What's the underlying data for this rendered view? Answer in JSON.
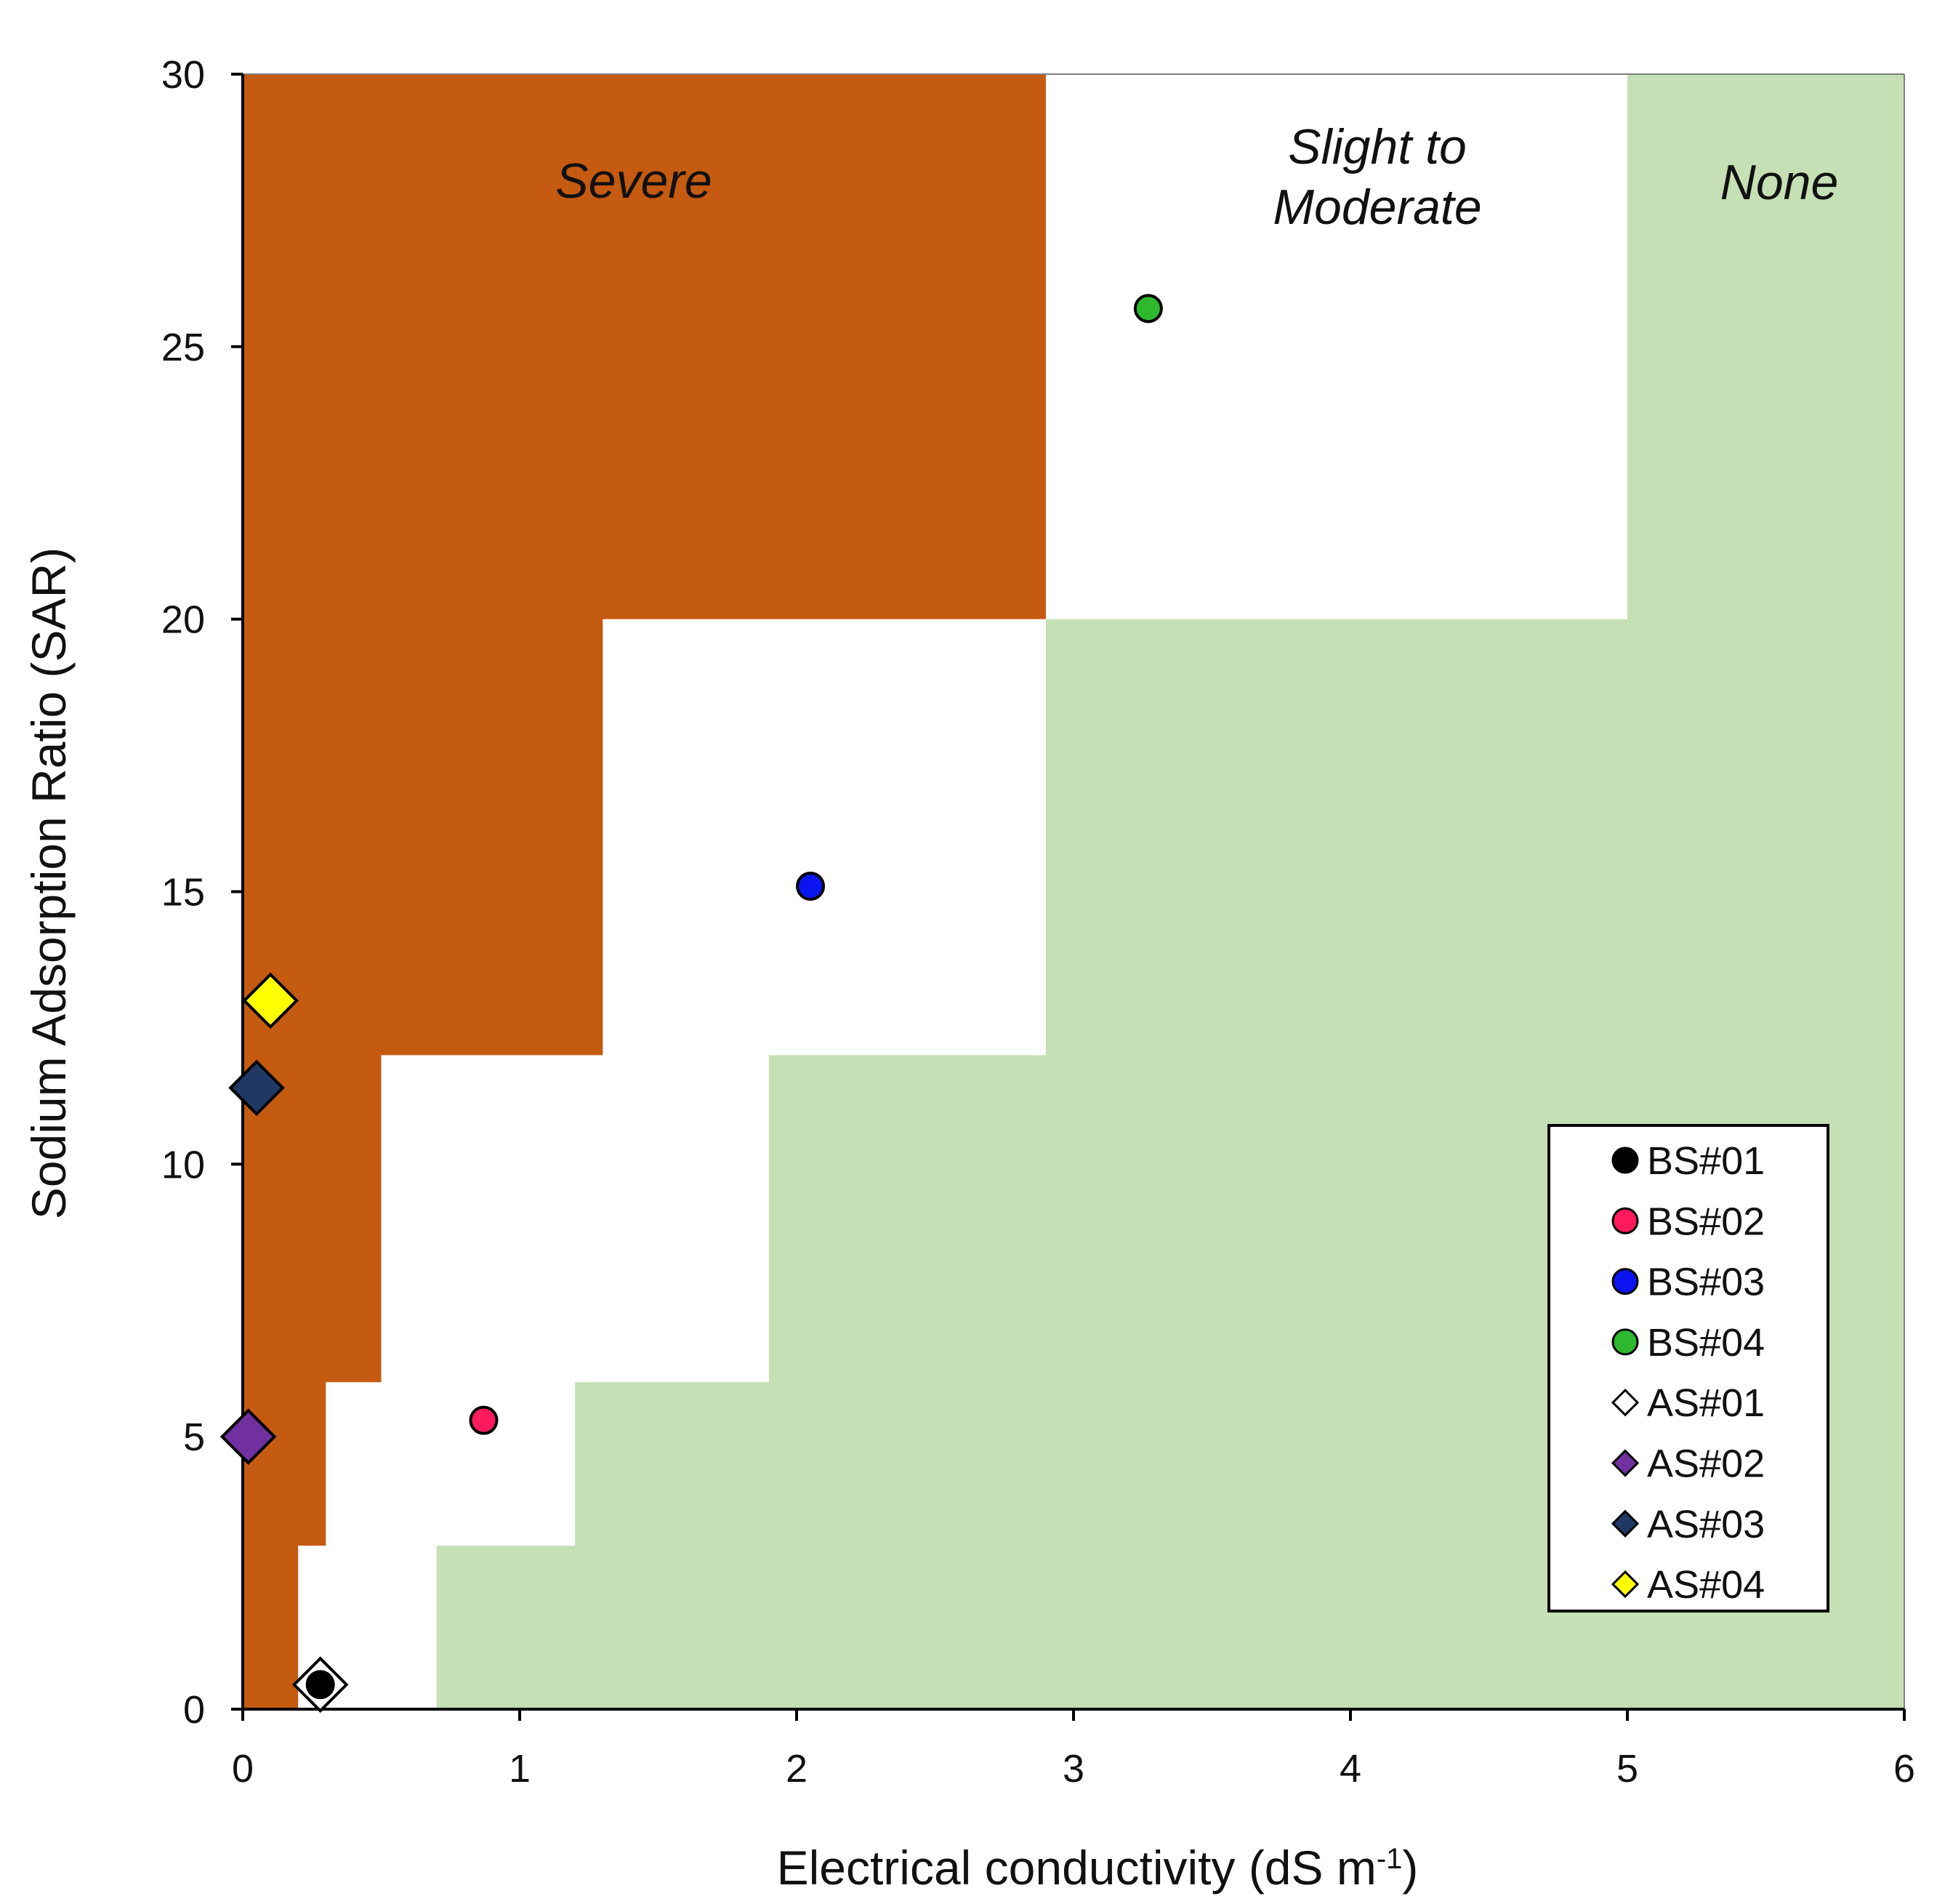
{
  "chart_data": {
    "type": "scatter",
    "title": "",
    "xlabel": "Electrical conductivity (dS m",
    "xlabel_sup": "-1",
    "xlabel_tail": ")",
    "ylabel": "Sodium Adsorption Ratio (SAR)",
    "xlim": [
      0,
      6
    ],
    "ylim": [
      0,
      30
    ],
    "x_ticks": [
      0,
      1,
      2,
      3,
      4,
      5,
      6
    ],
    "y_ticks": [
      0,
      5,
      10,
      15,
      20,
      25,
      30
    ],
    "x_tick_labels": [
      "0",
      "1",
      "2",
      "3",
      "4",
      "5",
      "6"
    ],
    "y_tick_labels": [
      "0",
      "5",
      "10",
      "15",
      "20",
      "25",
      "30"
    ],
    "zones": [
      {
        "name": "Severe",
        "label": "Severe",
        "color": "#c55a11",
        "polygon": [
          [
            0,
            0
          ],
          [
            0.2,
            0
          ],
          [
            0.2,
            3
          ],
          [
            0.3,
            3
          ],
          [
            0.3,
            6
          ],
          [
            0.5,
            6
          ],
          [
            0.5,
            12
          ],
          [
            1.3,
            12
          ],
          [
            1.3,
            20
          ],
          [
            2.9,
            20
          ],
          [
            2.9,
            30
          ],
          [
            0,
            30
          ]
        ]
      },
      {
        "name": "Slight to Moderate",
        "label_lines": [
          "Slight to",
          "Moderate"
        ],
        "color": "#ffffff"
      },
      {
        "name": "None",
        "label": "None",
        "color": "#c5e0b4",
        "polygon": [
          [
            0.7,
            0
          ],
          [
            6,
            0
          ],
          [
            6,
            30
          ],
          [
            5,
            30
          ],
          [
            5,
            20
          ],
          [
            2.9,
            20
          ],
          [
            2.9,
            12
          ],
          [
            1.9,
            12
          ],
          [
            1.9,
            6
          ],
          [
            1.2,
            6
          ],
          [
            1.2,
            3
          ],
          [
            0.7,
            3
          ]
        ]
      }
    ],
    "series": [
      {
        "name": "BS#01",
        "marker": "circle",
        "color": "#000000",
        "x": 0.28,
        "y": 0.45
      },
      {
        "name": "BS#02",
        "marker": "circle",
        "color": "#ff1a5e",
        "x": 0.87,
        "y": 5.3
      },
      {
        "name": "BS#03",
        "marker": "circle",
        "color": "#0a14f0",
        "x": 2.05,
        "y": 15.1
      },
      {
        "name": "BS#04",
        "marker": "circle",
        "color": "#2eb82e",
        "x": 3.27,
        "y": 25.7
      },
      {
        "name": "AS#01",
        "marker": "diamond",
        "color": "#ffffff",
        "x": 0.28,
        "y": 0.45
      },
      {
        "name": "AS#02",
        "marker": "diamond",
        "color": "#7030a0",
        "x": 0.02,
        "y": 5.0
      },
      {
        "name": "AS#03",
        "marker": "diamond",
        "color": "#1f3864",
        "x": 0.05,
        "y": 11.4
      },
      {
        "name": "AS#04",
        "marker": "diamond",
        "color": "#ffff00",
        "x": 0.1,
        "y": 13.0
      }
    ],
    "legend": {
      "position": "bottom-right",
      "entries": [
        "BS#01",
        "BS#02",
        "BS#03",
        "BS#04",
        "AS#01",
        "AS#02",
        "AS#03",
        "AS#04"
      ]
    }
  }
}
